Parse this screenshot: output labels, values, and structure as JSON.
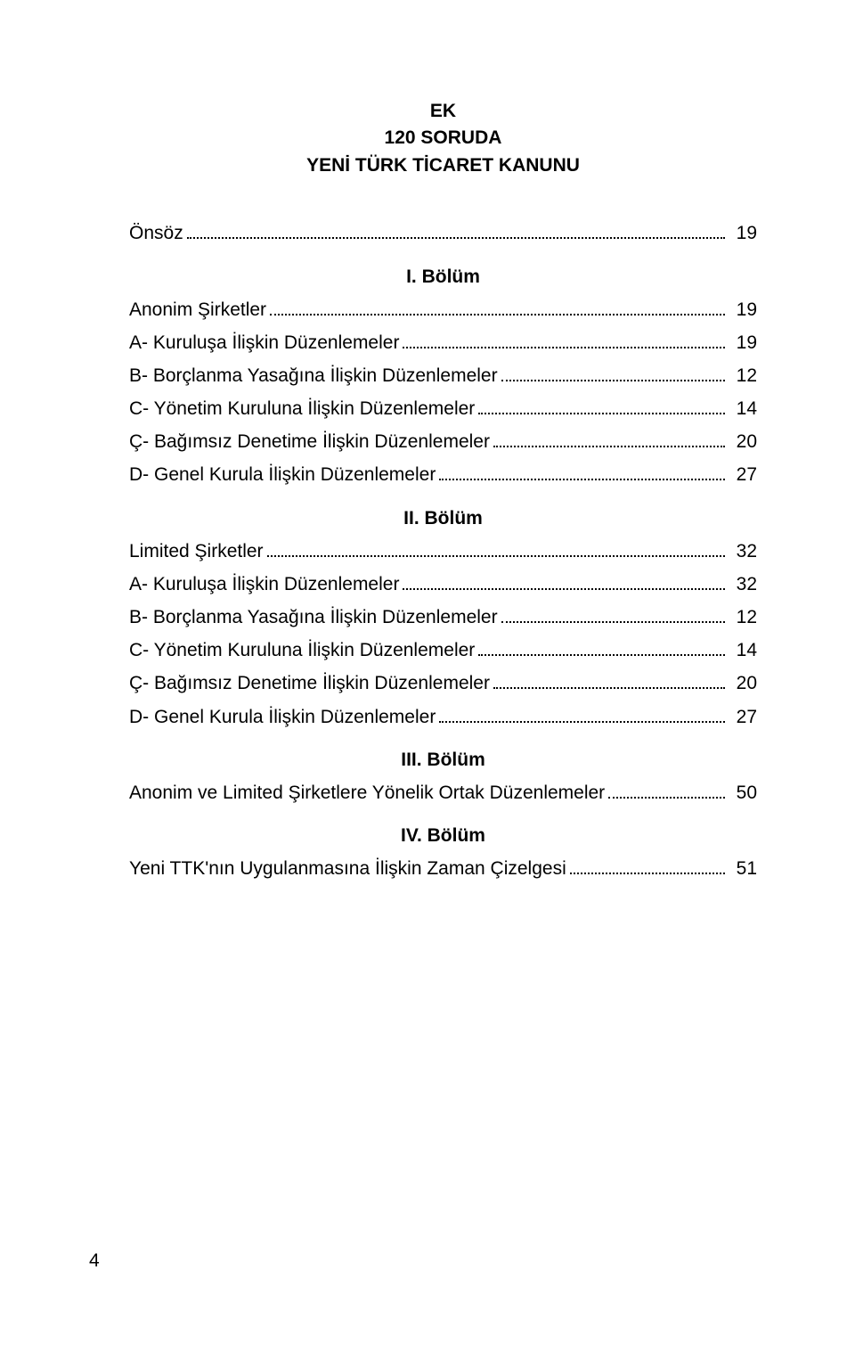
{
  "top": {
    "line1": "EK",
    "line2": "120 SORUDA",
    "line3": "YENİ TÜRK TİCARET KANUNU"
  },
  "entries": [
    {
      "type": "toc",
      "label": "Önsöz",
      "page": "19"
    },
    {
      "type": "section",
      "label": "I. Bölüm"
    },
    {
      "type": "toc",
      "label": "Anonim Şirketler",
      "page": "19"
    },
    {
      "type": "toc",
      "label": "A- Kuruluşa İlişkin Düzenlemeler",
      "page": "19"
    },
    {
      "type": "toc",
      "label": "B- Borçlanma Yasağına İlişkin Düzenlemeler",
      "page": "12"
    },
    {
      "type": "toc",
      "label": "C- Yönetim Kuruluna İlişkin Düzenlemeler",
      "page": "14"
    },
    {
      "type": "toc",
      "label": "Ç- Bağımsız Denetime İlişkin Düzenlemeler",
      "page": "20"
    },
    {
      "type": "toc",
      "label": "D- Genel Kurula İlişkin Düzenlemeler",
      "page": "27"
    },
    {
      "type": "section",
      "label": "II. Bölüm"
    },
    {
      "type": "toc",
      "label": "Limited Şirketler",
      "page": "32"
    },
    {
      "type": "toc",
      "label": "A- Kuruluşa İlişkin Düzenlemeler",
      "page": "32"
    },
    {
      "type": "toc",
      "label": "B- Borçlanma Yasağına İlişkin Düzenlemeler",
      "page": "12"
    },
    {
      "type": "toc",
      "label": "C- Yönetim Kuruluna İlişkin Düzenlemeler",
      "page": "14"
    },
    {
      "type": "toc",
      "label": "Ç- Bağımsız Denetime İlişkin Düzenlemeler",
      "page": "20"
    },
    {
      "type": "toc",
      "label": "D- Genel Kurula İlişkin Düzenlemeler",
      "page": "27"
    },
    {
      "type": "section",
      "label": "III. Bölüm"
    },
    {
      "type": "toc",
      "label": "Anonim ve Limited Şirketlere Yönelik Ortak Düzenlemeler",
      "page": "50"
    },
    {
      "type": "section",
      "label": "IV. Bölüm"
    },
    {
      "type": "toc",
      "label": "Yeni TTK'nın Uygulanmasına İlişkin Zaman Çizelgesi",
      "page": "51"
    }
  ],
  "footer": {
    "page_number": "4"
  }
}
